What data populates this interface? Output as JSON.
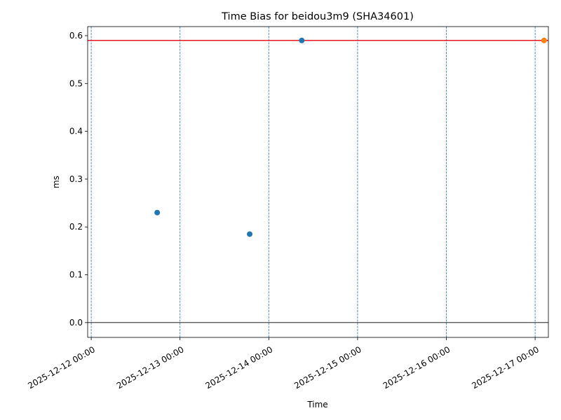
{
  "chart_data": {
    "type": "scatter",
    "title": "Time Bias for beidou3m9 (SHA34601)",
    "x_label": "Time",
    "y_label": "ms",
    "series": [
      {
        "color": "#1f77b4",
        "x": [
          "2025-12-12T17:50",
          "2025-12-13T18:50",
          "2025-12-14T08:55"
        ],
        "values": [
          0.23,
          0.185,
          0.59
        ]
      },
      {
        "color": "#ff7f0e",
        "x": [
          "2025-12-17T02:25"
        ],
        "values": [
          0.59
        ]
      }
    ],
    "reference_line": {
      "value": 0.59,
      "color": "#e41a1c"
    },
    "baseline": {
      "value": 0,
      "color": "#000000"
    },
    "xlim": [
      "2025-12-11T23:02",
      "2025-12-17T03:35"
    ],
    "xticks": [
      {
        "value": "2025-12-12T00:00",
        "label": "2025-12-12 00:00"
      },
      {
        "value": "2025-12-13T00:00",
        "label": "2025-12-13 00:00"
      },
      {
        "value": "2025-12-14T00:00",
        "label": "2025-12-14 00:00"
      },
      {
        "value": "2025-12-15T00:00",
        "label": "2025-12-15 00:00"
      },
      {
        "value": "2025-12-16T00:00",
        "label": "2025-12-16 00:00"
      },
      {
        "value": "2025-12-17T00:00",
        "label": "2025-12-17 00:00"
      }
    ],
    "xgrid": true,
    "xgrid_color": "#1f77b4",
    "ylim": [
      -0.031,
      0.619
    ],
    "yticks": [
      {
        "value": 0,
        "label": "0.0"
      },
      0.1,
      0.2,
      0.3,
      0.4,
      0.5,
      0.6
    ]
  }
}
